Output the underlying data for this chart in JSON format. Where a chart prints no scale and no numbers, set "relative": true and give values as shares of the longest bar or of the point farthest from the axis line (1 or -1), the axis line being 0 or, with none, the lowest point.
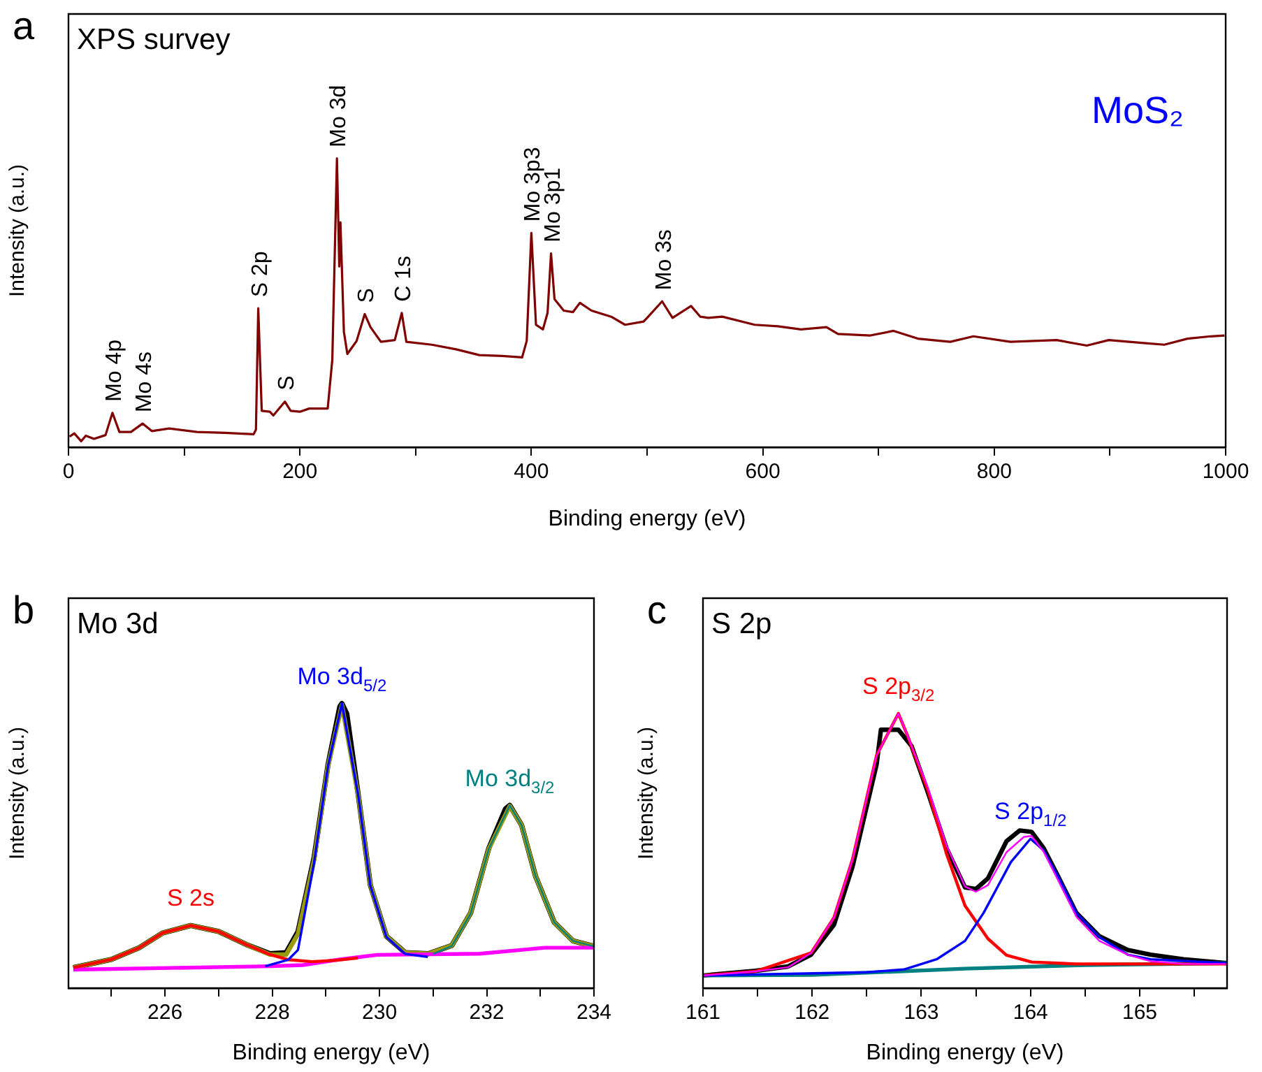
{
  "chart_data": [
    {
      "type": "line",
      "title": "XPS survey",
      "subtitle": "MoS₂",
      "xlabel": "Binding energy (eV)",
      "ylabel": "Intensity (a.u.)",
      "relative": true,
      "tick_labels": "x",
      "xlim": [
        0,
        1000
      ],
      "xticks": [
        0,
        {
          "value": 100,
          "label": null
        },
        200,
        {
          "value": 300,
          "label": null
        },
        400,
        {
          "value": 500,
          "label": null
        },
        600,
        {
          "value": 700,
          "label": null
        },
        800,
        {
          "value": 900,
          "label": null
        },
        1000
      ],
      "annotations": [
        "a",
        {
          "text": "Mo 4p",
          "x": 38,
          "y": 0.119
        },
        {
          "text": "Mo 4s",
          "x": 64,
          "y": 0.082
        },
        {
          "text": "S 2p",
          "x": 164,
          "y": 0.481
        },
        {
          "text": "S",
          "x": 187,
          "y": 0.158
        },
        {
          "text": "Mo 3d",
          "x": 232,
          "y": 1.0
        },
        {
          "text": "S",
          "x": 256,
          "y": 0.461
        },
        {
          "text": "C 1s",
          "x": 288,
          "y": 0.465
        },
        {
          "text": "Mo 3p3",
          "x": 400,
          "y": 0.742
        },
        {
          "text": "Mo 3p1",
          "x": 417,
          "y": 0.671
        },
        {
          "text": "Mo 3s",
          "x": 513,
          "y": 0.505
        }
      ],
      "series": [
        {
          "color": "#800000",
          "x": [
            1,
            5,
            11,
            15,
            22,
            32,
            38,
            44,
            54,
            64,
            72,
            87,
            111,
            135,
            160,
            162,
            164,
            167,
            174,
            177,
            187,
            192,
            200,
            208,
            224,
            228,
            232,
            234,
            235,
            238,
            241,
            249,
            256,
            261,
            270,
            282,
            288,
            292,
            314,
            335,
            355,
            375,
            392,
            396,
            400,
            404,
            410,
            414,
            417,
            420,
            428,
            436,
            442,
            452,
            469,
            481,
            497,
            501,
            513,
            522,
            538,
            546,
            553,
            565,
            593,
            613,
            633,
            655,
            665,
            693,
            713,
            734,
            762,
            782,
            814,
            854,
            880,
            899,
            931,
            947,
            967,
            987,
            999
          ],
          "values": [
            0.037,
            0.048,
            0.021,
            0.04,
            0.029,
            0.042,
            0.119,
            0.053,
            0.053,
            0.082,
            0.056,
            0.065,
            0.053,
            0.05,
            0.045,
            0.061,
            0.481,
            0.126,
            0.123,
            0.11,
            0.158,
            0.126,
            0.123,
            0.134,
            0.134,
            0.303,
            1.0,
            0.626,
            0.779,
            0.4,
            0.323,
            0.368,
            0.461,
            0.416,
            0.365,
            0.371,
            0.465,
            0.365,
            0.355,
            0.339,
            0.319,
            0.316,
            0.311,
            0.368,
            0.742,
            0.424,
            0.408,
            0.465,
            0.671,
            0.513,
            0.473,
            0.468,
            0.5,
            0.473,
            0.452,
            0.424,
            0.435,
            0.452,
            0.505,
            0.448,
            0.489,
            0.452,
            0.448,
            0.452,
            0.424,
            0.419,
            0.408,
            0.416,
            0.392,
            0.387,
            0.403,
            0.376,
            0.365,
            0.384,
            0.365,
            0.371,
            0.352,
            0.371,
            0.36,
            0.355,
            0.376,
            0.384,
            0.387
          ]
        }
      ]
    },
    {
      "type": "line",
      "title": "Mo 3d",
      "xlabel": "Binding energy (eV)",
      "ylabel": "Intensity (a.u.)",
      "relative": true,
      "tick_labels": "x",
      "xlim": [
        224.2,
        234
      ],
      "xticks": [
        {
          "value": 225,
          "label": null
        },
        226,
        {
          "value": 227,
          "label": null
        },
        228,
        {
          "value": 229,
          "label": null
        },
        230,
        {
          "value": 231,
          "label": null
        },
        232,
        {
          "value": 233,
          "label": null
        },
        234
      ],
      "annotations": [
        "b"
      ],
      "series": [
        {
          "color": "#000000",
          "x": [
            224.29,
            225.0,
            225.52,
            225.96,
            226.48,
            227.0,
            227.52,
            227.96,
            228.26,
            228.48,
            228.78,
            229.04,
            229.26,
            229.3,
            229.39,
            229.61,
            229.83,
            230.13,
            230.48,
            230.91,
            231.35,
            231.7,
            232.04,
            232.35,
            232.43,
            232.65,
            232.91,
            233.26,
            233.61,
            234
          ],
          "values": [
            0.072,
            0.101,
            0.142,
            0.194,
            0.22,
            0.199,
            0.153,
            0.121,
            0.125,
            0.199,
            0.459,
            0.785,
            0.989,
            1.0,
            0.964,
            0.671,
            0.362,
            0.182,
            0.125,
            0.121,
            0.15,
            0.264,
            0.492,
            0.63,
            0.642,
            0.573,
            0.394,
            0.231,
            0.166,
            0.147
          ]
        },
        {
          "color": "#9a9a10",
          "x": [
            224.29,
            225.0,
            225.52,
            225.96,
            226.48,
            227.0,
            227.52,
            227.96,
            228.26,
            228.48,
            228.78,
            229.04,
            229.3,
            229.61,
            229.83,
            230.13,
            230.48,
            230.91,
            231.35,
            231.7,
            232.04,
            232.43,
            232.65,
            232.91,
            233.26,
            233.61,
            234
          ],
          "values": [
            0.072,
            0.101,
            0.142,
            0.194,
            0.22,
            0.199,
            0.153,
            0.118,
            0.118,
            0.19,
            0.45,
            0.78,
            0.995,
            0.67,
            0.362,
            0.182,
            0.125,
            0.121,
            0.15,
            0.264,
            0.49,
            0.64,
            0.573,
            0.394,
            0.231,
            0.166,
            0.147
          ]
        },
        {
          "color": "#ff00ff",
          "x": [
            224.29,
            227.96,
            228.57,
            229.26,
            229.96,
            231.87,
            233.09,
            234
          ],
          "values": [
            0.065,
            0.077,
            0.081,
            0.101,
            0.117,
            0.121,
            0.142,
            0.142
          ]
        },
        {
          "name": "S 2s",
          "color": "#ff0000",
          "x": [
            224.29,
            225.0,
            225.52,
            225.96,
            226.48,
            227.0,
            227.52,
            227.96,
            228.3,
            228.74,
            229.2,
            229.6
          ],
          "values": [
            0.072,
            0.101,
            0.142,
            0.194,
            0.22,
            0.199,
            0.153,
            0.118,
            0.1,
            0.093,
            0.098,
            0.106
          ]
        },
        {
          "name": "Mo 3d$_{5/2}$",
          "color": "#0000ff",
          "x": [
            227.87,
            228.3,
            228.48,
            228.78,
            229.04,
            229.3,
            229.61,
            229.83,
            230.13,
            230.48,
            230.9
          ],
          "values": [
            0.077,
            0.1,
            0.134,
            0.44,
            0.78,
            1.0,
            0.67,
            0.36,
            0.18,
            0.12,
            0.11
          ]
        },
        {
          "name": "Mo 3d$_{3/2}$",
          "color": "#008080",
          "x": [
            231.0,
            231.35,
            231.7,
            232.04,
            232.43,
            232.65,
            232.91,
            233.26,
            233.61,
            234
          ],
          "values": [
            0.12,
            0.148,
            0.262,
            0.49,
            0.642,
            0.573,
            0.394,
            0.231,
            0.166,
            0.147
          ]
        }
      ]
    },
    {
      "type": "line",
      "title": "S 2p",
      "xlabel": "Binding energy (eV)",
      "ylabel": "Intensity (a.u.)",
      "relative": true,
      "tick_labels": "x",
      "xlim": [
        161,
        165.8
      ],
      "xticks": [
        161,
        {
          "value": 161.5,
          "label": null
        },
        162,
        {
          "value": 162.5,
          "label": null
        },
        163,
        {
          "value": 163.5,
          "label": null
        },
        164,
        {
          "value": 164.5,
          "label": null
        },
        165,
        {
          "value": 165.5,
          "label": null
        }
      ],
      "annotations": [
        "c"
      ],
      "series": [
        {
          "color": "#000000",
          "x": [
            161.0,
            161.48,
            161.78,
            161.99,
            162.2,
            162.37,
            162.59,
            162.63,
            162.79,
            162.91,
            163.06,
            163.23,
            163.4,
            163.5,
            163.61,
            163.78,
            163.9,
            164.01,
            164.12,
            164.25,
            164.42,
            164.63,
            164.89,
            165.1,
            165.4,
            165.8
          ],
          "values": [
            0.046,
            0.063,
            0.079,
            0.122,
            0.231,
            0.443,
            0.814,
            0.941,
            0.941,
            0.882,
            0.713,
            0.51,
            0.367,
            0.361,
            0.4,
            0.535,
            0.574,
            0.569,
            0.51,
            0.409,
            0.274,
            0.189,
            0.139,
            0.122,
            0.105,
            0.091
          ]
        },
        {
          "color": "#008080",
          "x": [
            161.0,
            162.0,
            163.4,
            164.5,
            165.8
          ],
          "values": [
            0.046,
            0.048,
            0.071,
            0.084,
            0.091
          ]
        },
        {
          "name": "S 2p$_{3/2}$",
          "color": "#ff0000",
          "x": [
            161.0,
            161.48,
            161.99,
            162.2,
            162.37,
            162.59,
            162.79,
            162.87,
            163.06,
            163.23,
            163.4,
            163.61,
            163.78,
            164.01,
            164.42,
            165.0,
            165.8
          ],
          "values": [
            0.046,
            0.061,
            0.128,
            0.257,
            0.47,
            0.848,
            1.0,
            0.923,
            0.72,
            0.49,
            0.3,
            0.18,
            0.12,
            0.095,
            0.088,
            0.088,
            0.088
          ]
        },
        {
          "name": "S 2p$_{1/2}$",
          "color": "#0000ff",
          "x": [
            161.0,
            162.5,
            162.84,
            163.14,
            163.4,
            163.57,
            163.82,
            164.0,
            164.12,
            164.25,
            164.42,
            164.63,
            164.89,
            165.1,
            165.8
          ],
          "values": [
            0.046,
            0.058,
            0.068,
            0.105,
            0.172,
            0.274,
            0.459,
            0.544,
            0.502,
            0.409,
            0.274,
            0.186,
            0.122,
            0.105,
            0.091
          ]
        },
        {
          "color": "#ff00ff",
          "x": [
            161.0,
            161.48,
            161.78,
            161.99,
            162.2,
            162.37,
            162.59,
            162.79,
            162.87,
            163.06,
            163.23,
            163.4,
            163.5,
            163.61,
            163.78,
            163.94,
            164.01,
            164.12,
            164.25,
            164.42,
            164.63,
            164.89,
            165.1,
            165.4,
            165.8
          ],
          "values": [
            0.046,
            0.061,
            0.076,
            0.128,
            0.257,
            0.47,
            0.848,
            1.0,
            0.923,
            0.73,
            0.52,
            0.37,
            0.351,
            0.375,
            0.495,
            0.551,
            0.554,
            0.497,
            0.395,
            0.26,
            0.172,
            0.122,
            0.098,
            0.088,
            0.088
          ]
        }
      ]
    }
  ]
}
